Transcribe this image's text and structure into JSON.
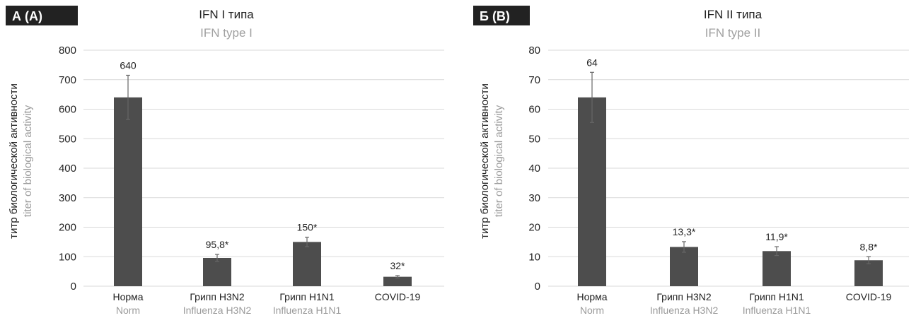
{
  "chart_data": [
    {
      "type": "bar",
      "panel_label": "А (A)",
      "title": "IFN I типа",
      "subtitle": "IFN type I",
      "ylabel": "титр биологической активности",
      "ylabel_en": "titer of biological activity",
      "ylim": [
        0,
        800
      ],
      "yticks": [
        0,
        100,
        200,
        300,
        400,
        500,
        600,
        700,
        800
      ],
      "grid": true,
      "categories": [
        "Норма",
        "Грипп H3N2",
        "Грипп H1N1",
        "COVID-19"
      ],
      "categories_en": [
        "Norm",
        "Influenza H3N2",
        "Influenza H1N1",
        ""
      ],
      "values": [
        640,
        95.8,
        150,
        32
      ],
      "data_labels": [
        "640",
        "95,8*",
        "150*",
        "32*"
      ],
      "error": [
        75,
        12,
        16,
        4
      ]
    },
    {
      "type": "bar",
      "panel_label": "Б (B)",
      "title": "IFN II типа",
      "subtitle": "IFN type II",
      "ylabel": "титр биологической активности",
      "ylabel_en": "titer of biological activity",
      "ylim": [
        0,
        80
      ],
      "yticks": [
        0,
        10,
        20,
        30,
        40,
        50,
        60,
        70,
        80
      ],
      "grid": true,
      "categories": [
        "Норма",
        "Грипп H3N2",
        "Грипп H1N1",
        "COVID-19"
      ],
      "categories_en": [
        "Norm",
        "Influenza H3N2",
        "Influenza H1N1",
        ""
      ],
      "values": [
        64,
        13.3,
        11.9,
        8.8
      ],
      "data_labels": [
        "64",
        "13,3*",
        "11,9*",
        "8,8*"
      ],
      "error": [
        8.5,
        1.8,
        1.5,
        1.2
      ]
    }
  ],
  "colors": {
    "bar": "#4d4d4d",
    "tag_bg": "#222222",
    "grid": "#d9d9d9"
  }
}
